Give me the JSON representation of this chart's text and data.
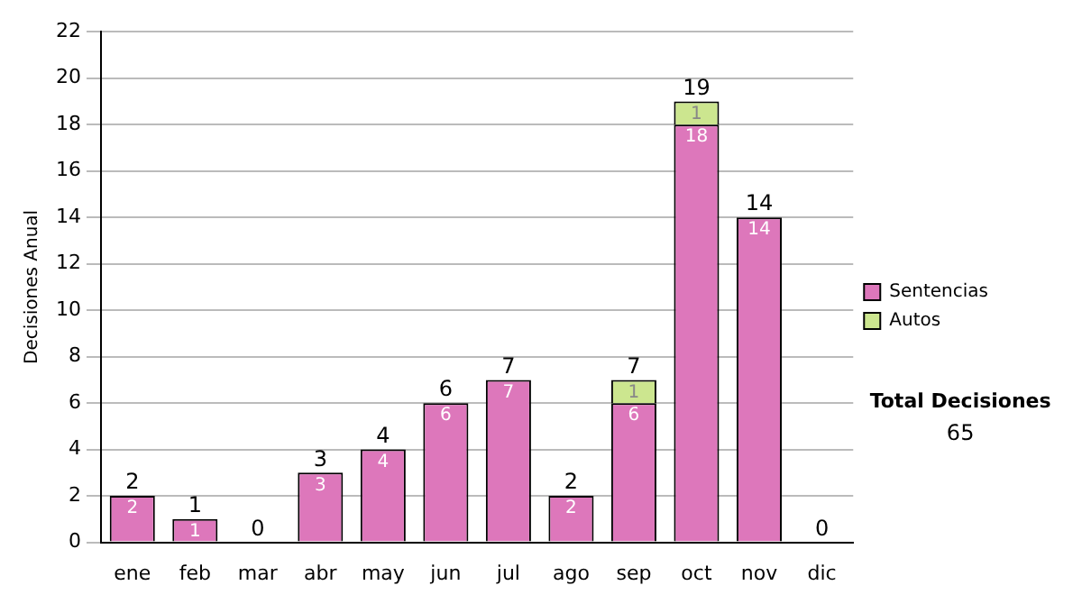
{
  "chart_data": {
    "type": "bar",
    "stacked": true,
    "ylabel": "Decisiones Anual",
    "categories": [
      "ene",
      "feb",
      "mar",
      "abr",
      "may",
      "jun",
      "jul",
      "ago",
      "sep",
      "oct",
      "nov",
      "dic"
    ],
    "series": [
      {
        "name": "Sentencias",
        "color": "#dd77bb",
        "values": [
          2,
          1,
          0,
          3,
          4,
          6,
          7,
          2,
          6,
          18,
          14,
          0
        ],
        "value_labels": [
          "2",
          "1",
          null,
          "3",
          "4",
          "6",
          "7",
          "2",
          "6",
          "18",
          "14",
          null
        ]
      },
      {
        "name": "Autos",
        "color": "#cce68f",
        "values": [
          0,
          0,
          0,
          0,
          0,
          0,
          0,
          0,
          1,
          1,
          0,
          0
        ],
        "value_labels": [
          null,
          null,
          null,
          null,
          null,
          null,
          null,
          null,
          "1",
          "1",
          null,
          null
        ]
      }
    ],
    "totals": [
      "2",
      "1",
      "0",
      "3",
      "4",
      "6",
      "7",
      "2",
      "7",
      "19",
      "14",
      "0"
    ],
    "ylim": [
      0,
      22
    ],
    "yticks": [
      0,
      2,
      4,
      6,
      8,
      10,
      12,
      14,
      16,
      18,
      20,
      22
    ],
    "grid": "y",
    "legend": "right",
    "annotations": [
      "Total Decisiones",
      "65"
    ]
  }
}
